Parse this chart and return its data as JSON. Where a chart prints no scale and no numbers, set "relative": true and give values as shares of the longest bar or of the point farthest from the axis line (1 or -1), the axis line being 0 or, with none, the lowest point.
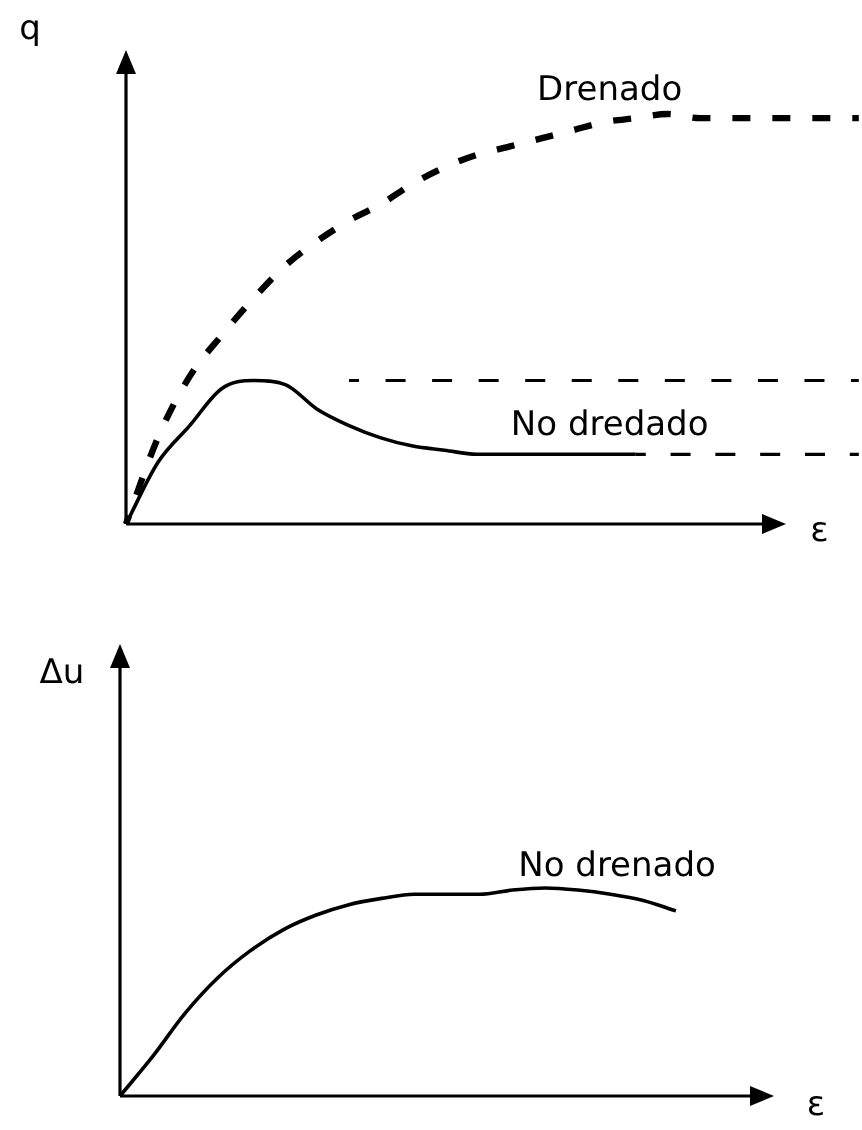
{
  "chart_data": [
    {
      "type": "line",
      "relative": true,
      "ylabel": "q",
      "xlabel": "ε",
      "categories": [
        null,
        null,
        null,
        null,
        null,
        null,
        null,
        null,
        null,
        null,
        null,
        null,
        null,
        null,
        null,
        null,
        null,
        null,
        null,
        null,
        null,
        null,
        null,
        null
      ],
      "series": [
        {
          "name": "Drenado",
          "color": "#000000",
          "line_style": "dashed",
          "values": [
            0,
            0.21,
            0.36,
            0.46,
            0.55,
            0.63,
            0.69,
            0.74,
            0.78,
            0.83,
            0.87,
            0.9,
            0.92,
            0.94,
            0.96,
            0.98,
            0.99,
            1,
            0.99,
            0.99,
            0.99,
            0.99,
            0.99,
            0.99
          ]
        },
        {
          "name": "No dredado",
          "color": "#000000",
          "line_style": "solid",
          "values": [
            0,
            0.15,
            0.24,
            0.33,
            0.35,
            0.34,
            0.28,
            0.24,
            0.21,
            0.19,
            0.18,
            0.17,
            0.17,
            0.17,
            0.17,
            0.17,
            0.17,
            null,
            null,
            null,
            null,
            null,
            null,
            null
          ]
        },
        {
          "color": "#000000",
          "line_style": "dashed",
          "values": [
            null,
            null,
            null,
            null,
            null,
            null,
            null,
            0.35,
            0.35,
            0.35,
            0.35,
            0.35,
            0.35,
            0.35,
            0.35,
            0.35,
            0.35,
            0.35,
            0.35,
            0.35,
            0.35,
            0.35,
            0.35,
            0.35
          ]
        },
        {
          "color": "#000000",
          "line_style": "dashed",
          "values": [
            null,
            null,
            null,
            null,
            null,
            null,
            null,
            null,
            null,
            null,
            null,
            null,
            null,
            null,
            null,
            null,
            0.17,
            0.17,
            0.17,
            0.17,
            0.17,
            0.17,
            0.17,
            0.17
          ]
        }
      ]
    },
    {
      "type": "line",
      "relative": true,
      "ylabel": "Δu",
      "xlabel": "ε",
      "categories": [
        null,
        null,
        null,
        null,
        null,
        null,
        null,
        null,
        null,
        null,
        null,
        null,
        null,
        null,
        null,
        null,
        null,
        null,
        null,
        null,
        null
      ],
      "series": [
        {
          "name": "No drenado",
          "color": "#000000",
          "line_style": "solid",
          "values": [
            0,
            0.19,
            0.4,
            0.57,
            0.7,
            0.8,
            0.87,
            0.92,
            0.95,
            0.97,
            0.97,
            0.97,
            0.99,
            1,
            0.99,
            0.97,
            0.94,
            0.89,
            null,
            null,
            null
          ]
        }
      ]
    }
  ]
}
